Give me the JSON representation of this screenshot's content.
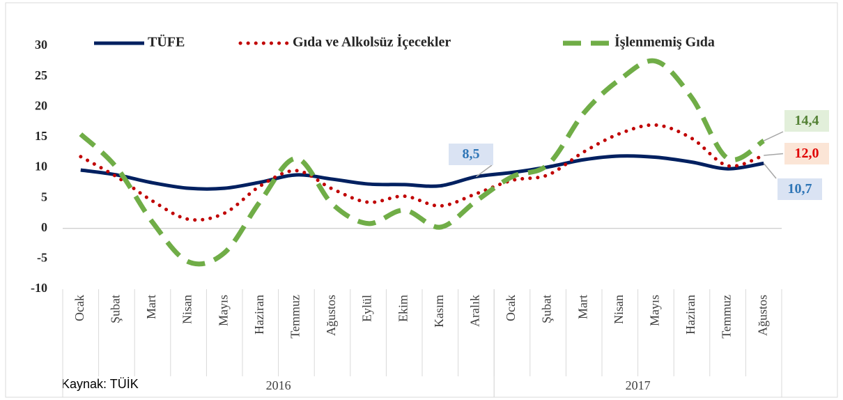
{
  "chart_data": {
    "type": "line",
    "categories": [
      "Ocak",
      "Şubat",
      "Mart",
      "Nisan",
      "Mayıs",
      "Haziran",
      "Temmuz",
      "Ağustos",
      "Eylül",
      "Ekim",
      "Kasım",
      "Aralık",
      "Ocak",
      "Şubat",
      "Mart",
      "Nisan",
      "Mayıs",
      "Haziran",
      "Temmuz",
      "Ağustos"
    ],
    "group_labels": [
      "2016",
      "2017"
    ],
    "group_sizes": [
      12,
      8
    ],
    "series": [
      {
        "name": "TÜFE",
        "color": "#002060",
        "style": "solid",
        "values": [
          9.6,
          8.8,
          7.5,
          6.6,
          6.6,
          7.6,
          8.8,
          8.1,
          7.3,
          7.2,
          7.0,
          8.5,
          9.2,
          10.1,
          11.3,
          11.9,
          11.7,
          10.9,
          9.8,
          10.7
        ],
        "value_labels": [
          null,
          null,
          null,
          null,
          null,
          null,
          null,
          null,
          null,
          null,
          null,
          "8,5",
          null,
          null,
          null,
          null,
          null,
          null,
          null,
          "10,7"
        ]
      },
      {
        "name": "Gıda ve Alkolsüz İçecekler",
        "color": "#c00000",
        "style": "dotted",
        "values": [
          11.8,
          8.5,
          4.5,
          1.5,
          2.5,
          7.0,
          9.5,
          6.5,
          4.3,
          5.3,
          3.7,
          5.7,
          7.9,
          8.8,
          12.6,
          15.6,
          17.0,
          14.8,
          10.3,
          12.0
        ],
        "value_labels": [
          null,
          null,
          null,
          null,
          null,
          null,
          null,
          null,
          null,
          null,
          null,
          null,
          null,
          null,
          null,
          null,
          null,
          null,
          null,
          "12,0"
        ]
      },
      {
        "name": "İşlenmemiş Gıda",
        "color": "#70ad47",
        "style": "dashed",
        "values": [
          15.5,
          10.0,
          1.0,
          -5.5,
          -4.0,
          4.5,
          11.5,
          4.0,
          0.8,
          3.0,
          0.2,
          4.5,
          8.5,
          10.5,
          19.0,
          24.5,
          27.5,
          21.5,
          11.5,
          14.4
        ],
        "value_labels": [
          null,
          null,
          null,
          null,
          null,
          null,
          null,
          null,
          null,
          null,
          null,
          null,
          null,
          null,
          null,
          null,
          null,
          null,
          null,
          "14,4"
        ]
      }
    ],
    "ylim": [
      -10,
      30
    ],
    "yticks": [
      -10,
      -5,
      0,
      5,
      10,
      15,
      20,
      25,
      30
    ],
    "smooth": true,
    "grid": false,
    "legend": "top",
    "source": "Kaynak: TÜİK"
  }
}
